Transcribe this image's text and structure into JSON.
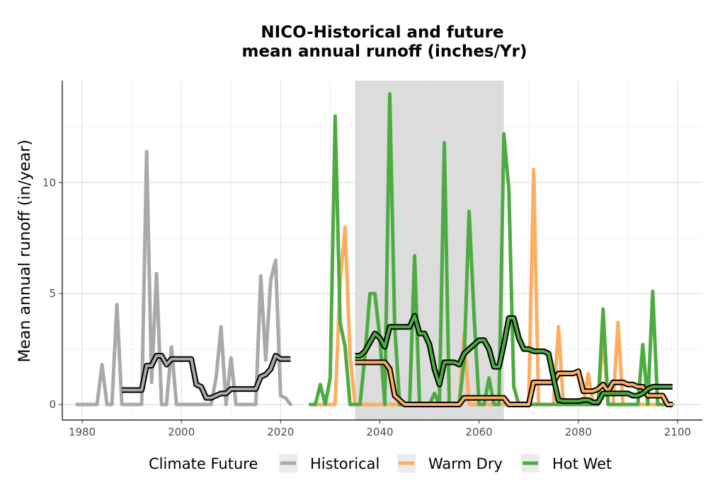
{
  "chart_data": {
    "type": "line",
    "title": "NICO-Historical and future",
    "subtitle": "mean annual runoff (inches/Yr)",
    "xlabel": "",
    "ylabel": "Mean annual runoff (in/year)",
    "xlim": [
      1976,
      2105
    ],
    "ylim": [
      -0.7,
      14.6
    ],
    "x_ticks": [
      1980,
      2000,
      2020,
      2040,
      2060,
      2080,
      2100
    ],
    "y_ticks": [
      0,
      5,
      10
    ],
    "shaded_period": {
      "x": [
        2035,
        2065
      ],
      "color": "#dcdcdc"
    },
    "grid": true,
    "legend": {
      "title": "Climate Future",
      "position": "bottom",
      "entries": [
        "Historical",
        "Warm Dry",
        "Hot Wet"
      ]
    },
    "series": [
      {
        "name": "Historical",
        "color": "#a9a9a9",
        "x": [
          1979,
          1980,
          1981,
          1982,
          1983,
          1984,
          1985,
          1986,
          1987,
          1988,
          1989,
          1990,
          1991,
          1992,
          1993,
          1994,
          1995,
          1996,
          1997,
          1998,
          1999,
          2000,
          2001,
          2002,
          2003,
          2004,
          2005,
          2006,
          2007,
          2008,
          2009,
          2010,
          2011,
          2012,
          2013,
          2014,
          2015,
          2016,
          2017,
          2018,
          2019,
          2020,
          2021,
          2022
        ],
        "y": [
          0,
          0,
          0,
          0,
          0,
          1.8,
          0,
          0,
          4.5,
          0,
          0,
          0,
          0,
          0,
          11.4,
          1,
          5.9,
          0,
          0,
          2.6,
          0,
          0,
          0,
          0,
          0,
          0,
          0,
          0,
          1.2,
          3.5,
          0,
          2.1,
          0,
          0,
          0,
          0,
          0,
          5.8,
          2,
          5.6,
          6.5,
          0.4,
          0.3,
          0
        ]
      },
      {
        "name": "",
        "color": "#000000",
        "outline_of": "Historical",
        "x": [
          1988,
          1989,
          1990,
          1991,
          1992,
          1993,
          1994,
          1995,
          1996,
          1997,
          1998,
          1999,
          2000,
          2001,
          2002,
          2003,
          2004,
          2005,
          2006,
          2007,
          2008,
          2009,
          2010,
          2011,
          2012,
          2013,
          2014,
          2015,
          2016,
          2017,
          2018,
          2019,
          2020,
          2021,
          2022
        ],
        "y": [
          0.65,
          0.65,
          0.65,
          0.65,
          0.65,
          1.75,
          1.75,
          2.2,
          2.2,
          1.8,
          2.05,
          2.05,
          2.05,
          2.05,
          2.05,
          0.9,
          0.8,
          0.3,
          0.3,
          0.4,
          0.5,
          0.5,
          0.7,
          0.7,
          0.7,
          0.7,
          0.7,
          0.7,
          1.25,
          1.35,
          1.6,
          2.2,
          2.05,
          2.05,
          2.05
        ]
      },
      {
        "name": "Warm Dry",
        "color": "#fdae61",
        "x": [
          2026,
          2027,
          2028,
          2029,
          2030,
          2031,
          2032,
          2033,
          2034,
          2035,
          2036,
          2037,
          2038,
          2039,
          2040,
          2041,
          2042,
          2043,
          2044,
          2045,
          2046,
          2047,
          2048,
          2049,
          2050,
          2051,
          2052,
          2053,
          2054,
          2055,
          2056,
          2057,
          2058,
          2059,
          2060,
          2061,
          2062,
          2063,
          2064,
          2065,
          2066,
          2067,
          2068,
          2069,
          2070,
          2071,
          2072,
          2073,
          2074,
          2075,
          2076,
          2077,
          2078,
          2079,
          2080,
          2081,
          2082,
          2083,
          2084,
          2085,
          2086,
          2087,
          2088,
          2089,
          2090,
          2091,
          2092,
          2093,
          2094,
          2095,
          2096,
          2097,
          2098,
          2099
        ],
        "y": [
          0,
          0,
          0,
          0,
          0,
          0,
          5.5,
          8,
          2.2,
          0,
          0,
          0,
          0,
          0,
          0,
          0,
          0,
          0,
          0,
          0,
          0,
          0,
          0,
          0,
          0,
          0,
          0,
          0,
          0,
          0,
          0,
          3.2,
          0,
          0,
          0,
          0,
          0,
          0,
          0,
          0,
          0,
          0,
          0,
          0,
          0,
          10.6,
          0,
          0,
          0,
          0,
          3.5,
          0,
          0,
          0,
          0,
          0,
          1.4,
          0,
          0,
          3.2,
          0,
          0,
          3.7,
          0,
          0,
          0,
          0,
          0,
          0,
          0,
          0,
          0,
          0,
          0
        ]
      },
      {
        "name": "",
        "color": "#000000",
        "outline_of": "Warm Dry",
        "x": [
          2035,
          2036,
          2037,
          2038,
          2039,
          2040,
          2041,
          2042,
          2043,
          2044,
          2045,
          2046,
          2047,
          2048,
          2049,
          2050,
          2051,
          2052,
          2053,
          2054,
          2055,
          2056,
          2057,
          2058,
          2059,
          2060,
          2061,
          2062,
          2063,
          2064,
          2065,
          2066,
          2067,
          2068,
          2069,
          2070,
          2071,
          2072,
          2073,
          2074,
          2075,
          2076,
          2077,
          2078,
          2079,
          2080,
          2081,
          2082,
          2083,
          2084,
          2085,
          2086,
          2087,
          2088,
          2089,
          2090,
          2091,
          2092,
          2093,
          2094,
          2095,
          2096,
          2097,
          2098,
          2099
        ],
        "y": [
          1.9,
          1.9,
          1.9,
          1.9,
          1.9,
          1.9,
          1.9,
          1.6,
          0.4,
          0.2,
          0,
          0,
          0,
          0,
          0,
          0,
          0,
          0,
          0,
          0,
          0,
          0,
          0.3,
          0.3,
          0.3,
          0.3,
          0.3,
          0.3,
          0.3,
          0.3,
          0.3,
          0,
          0,
          0,
          0,
          0,
          1,
          1,
          1,
          1,
          1,
          1.4,
          1.4,
          1.4,
          1.4,
          1.5,
          0.6,
          0.6,
          0.6,
          0.7,
          0.9,
          0.6,
          1,
          1,
          1,
          0.9,
          0.9,
          0.8,
          0.8,
          0.4,
          0.4,
          0.4,
          0.4,
          0,
          0
        ]
      },
      {
        "name": "Hot Wet",
        "color": "#4dac41",
        "x": [
          2026,
          2027,
          2028,
          2029,
          2030,
          2031,
          2032,
          2033,
          2034,
          2035,
          2036,
          2037,
          2038,
          2039,
          2040,
          2041,
          2042,
          2043,
          2044,
          2045,
          2046,
          2047,
          2048,
          2049,
          2050,
          2051,
          2052,
          2053,
          2054,
          2055,
          2056,
          2057,
          2058,
          2059,
          2060,
          2061,
          2062,
          2063,
          2064,
          2065,
          2066,
          2067,
          2068,
          2069,
          2070,
          2071,
          2072,
          2073,
          2074,
          2075,
          2076,
          2077,
          2078,
          2079,
          2080,
          2081,
          2082,
          2083,
          2084,
          2085,
          2086,
          2087,
          2088,
          2089,
          2090,
          2091,
          2092,
          2093,
          2094,
          2095,
          2096,
          2097,
          2098,
          2099
        ],
        "y": [
          0,
          0,
          0.9,
          0,
          1.2,
          13,
          3.7,
          2.6,
          0,
          0,
          0,
          2.2,
          5,
          5,
          3,
          0,
          14,
          3.5,
          0,
          0,
          0,
          6.7,
          0,
          0,
          0,
          0.5,
          0,
          11.8,
          0,
          0,
          0,
          2,
          8.7,
          4,
          0,
          0,
          1.2,
          0,
          0,
          12.2,
          9.7,
          0.8,
          0,
          0,
          0,
          0,
          0,
          0,
          0,
          0,
          0,
          0,
          0,
          0,
          0,
          0,
          0,
          0,
          0,
          4.3,
          0,
          0,
          0,
          0,
          0,
          0,
          0,
          2.7,
          0,
          5.1,
          0,
          0,
          0,
          0
        ]
      },
      {
        "name": "",
        "color": "#000000",
        "outline_of": "Hot Wet",
        "x": [
          2035,
          2036,
          2037,
          2038,
          2039,
          2040,
          2041,
          2042,
          2043,
          2044,
          2045,
          2046,
          2047,
          2048,
          2049,
          2050,
          2051,
          2052,
          2053,
          2054,
          2055,
          2056,
          2057,
          2058,
          2059,
          2060,
          2061,
          2062,
          2063,
          2064,
          2065,
          2066,
          2067,
          2068,
          2069,
          2070,
          2071,
          2072,
          2073,
          2074,
          2075,
          2076,
          2077,
          2078,
          2079,
          2080,
          2081,
          2082,
          2083,
          2084,
          2085,
          2086,
          2087,
          2088,
          2089,
          2090,
          2091,
          2092,
          2093,
          2094,
          2095,
          2096,
          2097,
          2098,
          2099
        ],
        "y": [
          2.2,
          2.2,
          2.4,
          2.8,
          3.2,
          3.0,
          2.6,
          3.5,
          3.5,
          3.5,
          3.5,
          3.5,
          4.0,
          3.2,
          3.2,
          2.7,
          1.6,
          0.9,
          1.9,
          1.9,
          1.9,
          1.8,
          2.3,
          2.5,
          2.7,
          2.9,
          2.9,
          2.5,
          1.7,
          1.7,
          2.7,
          3.9,
          3.9,
          3.0,
          2.5,
          2.5,
          2.4,
          2.4,
          2.4,
          2.3,
          1.2,
          0.2,
          0.15,
          0.15,
          0.15,
          0.15,
          0.2,
          0.2,
          0.1,
          0.1,
          0.5,
          0.5,
          0.5,
          0.5,
          0.5,
          0.5,
          0.4,
          0.4,
          0.5,
          0.7,
          0.8,
          0.8,
          0.8,
          0.8,
          0.8
        ]
      }
    ]
  }
}
